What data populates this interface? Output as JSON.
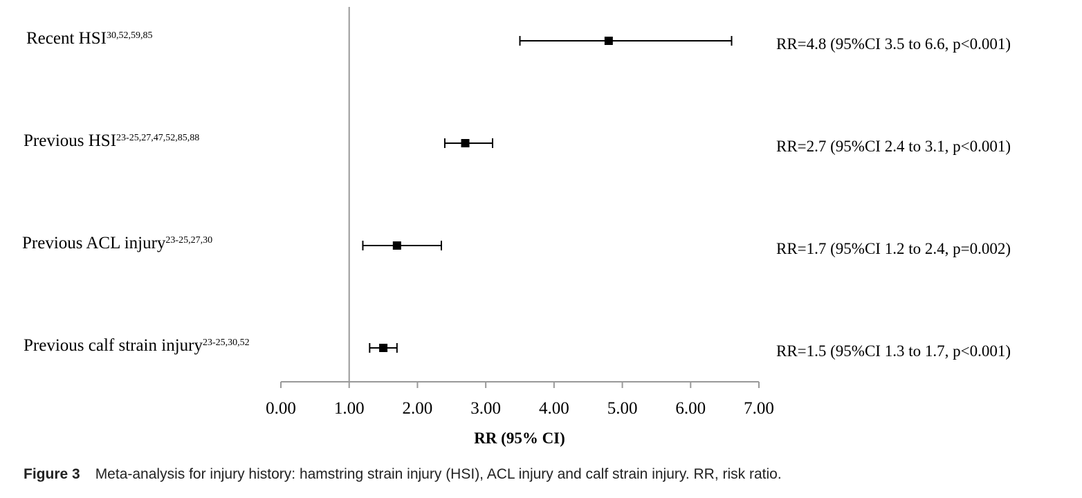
{
  "chart_data": {
    "type": "forest",
    "xlabel": "RR (95% CI)",
    "xlim": [
      0,
      7
    ],
    "xticks": [
      "0.00",
      "1.00",
      "2.00",
      "3.00",
      "4.00",
      "5.00",
      "6.00",
      "7.00"
    ],
    "reference_line": 1.0,
    "rows": [
      {
        "label": "Recent HSI",
        "refs": "30,52,59,85",
        "rr": 4.8,
        "ci_low": 3.5,
        "ci_high": 6.6,
        "annotation": "RR=4.8 (95%CI 3.5 to 6.6, p<0.001)"
      },
      {
        "label": "Previous HSI",
        "refs": "23-25,27,47,52,85,88",
        "rr": 2.7,
        "ci_low": 2.4,
        "ci_high": 3.1,
        "annotation": "RR=2.7 (95%CI 2.4 to 3.1, p<0.001)"
      },
      {
        "label": "Previous ACL injury",
        "refs": "23-25,27,30",
        "rr": 1.7,
        "ci_low": 1.2,
        "ci_high": 2.35,
        "annotation": "RR=1.7 (95%CI 1.2 to 2.4, p=0.002)"
      },
      {
        "label": "Previous calf strain injury",
        "refs": "23-25,30,52",
        "rr": 1.5,
        "ci_low": 1.3,
        "ci_high": 1.7,
        "annotation": "RR=1.5 (95%CI 1.3 to 1.7, p<0.001)"
      }
    ]
  },
  "caption": {
    "figure_label": "Figure 3",
    "text": "Meta-analysis for injury history: hamstring strain injury (HSI), ACL injury and calf strain injury. RR, risk ratio."
  }
}
